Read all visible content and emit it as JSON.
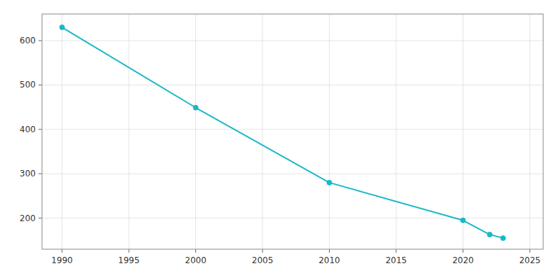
{
  "chart_data": {
    "type": "line",
    "x": [
      1990,
      2000,
      2010,
      2020,
      2022,
      2023
    ],
    "values": [
      630,
      449,
      280,
      195,
      163,
      155
    ],
    "color": "#17b8c8",
    "marker": "circle",
    "xlim": [
      1988.5,
      2026
    ],
    "ylim": [
      130,
      660
    ],
    "xticks": [
      1990,
      1995,
      2000,
      2005,
      2010,
      2015,
      2020,
      2025
    ],
    "yticks": [
      200,
      300,
      400,
      500,
      600
    ],
    "grid": true
  }
}
